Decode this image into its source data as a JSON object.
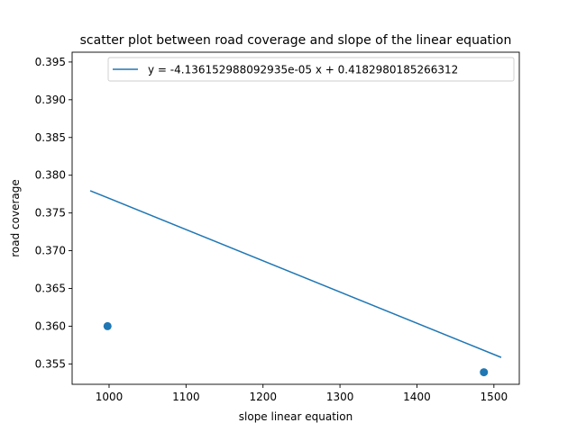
{
  "chart_data": {
    "type": "scatter",
    "title": "scatter plot between road coverage and slope of the linear equation",
    "xlabel": "slope linear equation",
    "ylabel": "road coverage",
    "xlim": [
      952,
      1533
    ],
    "ylim": [
      0.3523,
      0.3963
    ],
    "xticks": [
      1000,
      1100,
      1200,
      1300,
      1400,
      1500
    ],
    "xtick_labels": [
      "1000",
      "1100",
      "1200",
      "1300",
      "1400",
      "1500"
    ],
    "yticks": [
      0.355,
      0.36,
      0.365,
      0.37,
      0.375,
      0.38,
      0.385,
      0.39,
      0.395
    ],
    "ytick_labels": [
      "0.355",
      "0.360",
      "0.365",
      "0.370",
      "0.375",
      "0.380",
      "0.385",
      "0.390",
      "0.395"
    ],
    "points": [
      {
        "x": 998,
        "y": 0.36
      },
      {
        "x": 1487,
        "y": 0.3539
      }
    ],
    "fit_line": {
      "label": "y = -4.136152988092935e-05 x + 0.4182980185266312",
      "slope": -4.136152988092935e-05,
      "intercept": 0.4182980185266312,
      "x_range": [
        975.5,
        1509.5
      ]
    },
    "grid": false,
    "legend_position": "top-right",
    "colors": {
      "series": "#1f77b4",
      "axes": "#000000",
      "legend_border": "#cccccc"
    }
  }
}
